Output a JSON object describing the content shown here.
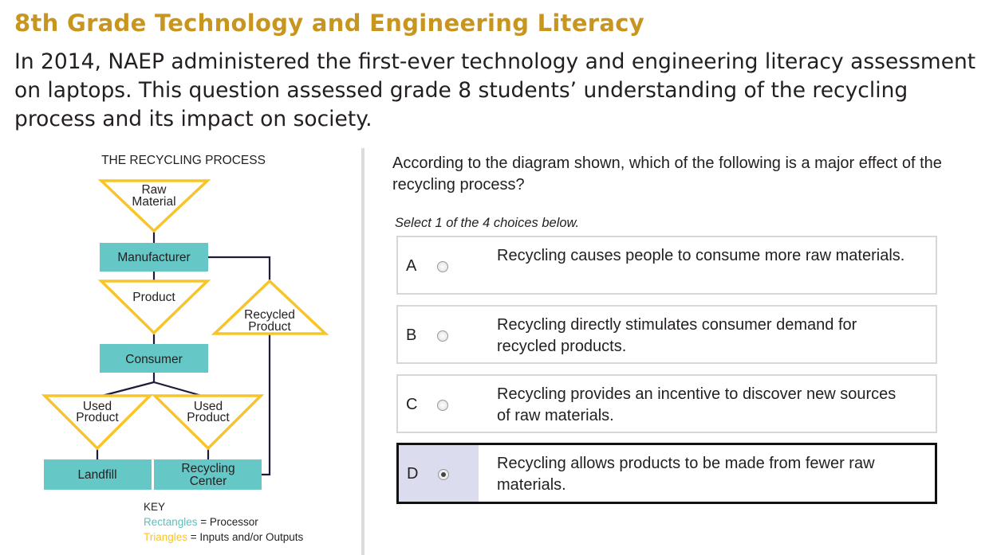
{
  "header": {
    "title": "8th Grade Technology and Engineering Literacy",
    "intro": "In 2014, NAEP administered the first-ever technology and engineering literacy assessment on laptops. This question assessed grade 8 students’ understanding of the recycling process and its impact on society."
  },
  "diagram": {
    "title": "THE RECYCLING PROCESS",
    "raw_material": [
      "Raw",
      "Material"
    ],
    "manufacturer": "Manufacturer",
    "product": "Product",
    "consumer": "Consumer",
    "recycled_product": [
      "Recycled",
      "Product"
    ],
    "used_product": [
      "Used",
      "Product"
    ],
    "landfill": "Landfill",
    "recycling_center": [
      "Recycling",
      "Center"
    ],
    "key": {
      "heading": "KEY",
      "rect_word": "Rectangles",
      "rect_desc": " = Processor",
      "tri_word": "Triangles",
      "tri_desc": " = Inputs and/or Outputs"
    },
    "colors": {
      "rectangle": "#66c8c6",
      "triangle": "#f7c52b",
      "line": "#1c1c3a"
    }
  },
  "question": {
    "prompt": "According to the diagram shown, which of the following is a major effect of the recycling process?",
    "instruction": "Select 1 of the 4 choices below.",
    "options": [
      {
        "letter": "A",
        "text": "Recycling causes people to consume more raw materials.",
        "selected": false
      },
      {
        "letter": "B",
        "text": "Recycling directly stimulates consumer demand for recycled products.",
        "selected": false
      },
      {
        "letter": "C",
        "text": "Recycling provides an incentive to discover new sources of raw materials.",
        "selected": false
      },
      {
        "letter": "D",
        "text": "Recycling allows products to be made from fewer raw materials.",
        "selected": true
      }
    ]
  }
}
